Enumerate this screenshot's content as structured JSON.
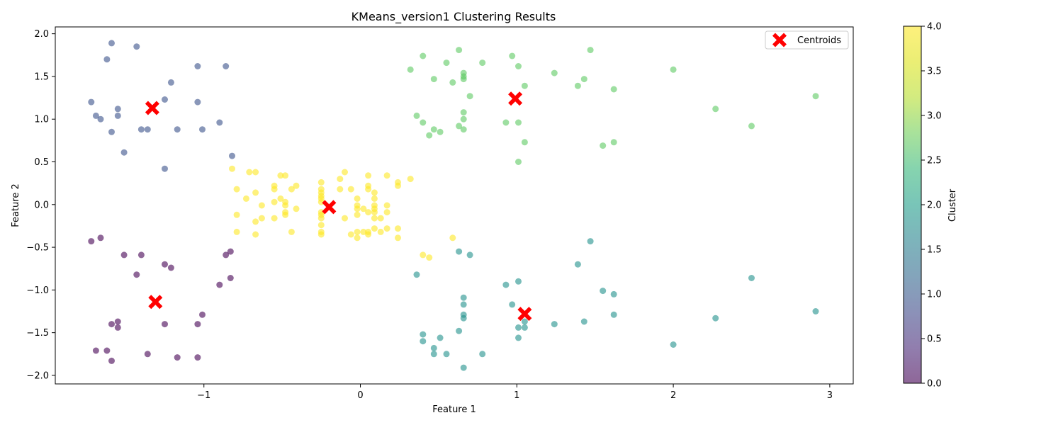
{
  "chart_data": {
    "type": "scatter",
    "title": "KMeans_version1 Clustering Results",
    "xlabel": "Feature 1",
    "ylabel": "Feature 2",
    "xlim": [
      -1.95,
      3.15
    ],
    "ylim": [
      -2.1,
      2.08
    ],
    "xticks": [
      -1,
      0,
      1,
      2,
      3
    ],
    "yticks": [
      -2.0,
      -1.5,
      -1.0,
      -0.5,
      0.0,
      0.5,
      1.0,
      1.5,
      2.0
    ],
    "grid": false,
    "legend": {
      "position": "top-right",
      "entries": [
        "Centroids"
      ]
    },
    "colorbar": {
      "label": "Cluster",
      "range": [
        0.0,
        4.0
      ],
      "ticks": [
        0.0,
        0.5,
        1.0,
        1.5,
        2.0,
        2.5,
        3.0,
        3.5,
        4.0
      ],
      "colormap": "viridis"
    },
    "point_alpha": 0.6,
    "series": [
      {
        "cluster": 0,
        "color": "#440154",
        "points": [
          [
            -1.72,
            -0.43
          ],
          [
            -1.66,
            -0.39
          ],
          [
            -1.51,
            -0.59
          ],
          [
            -1.4,
            -0.59
          ],
          [
            -1.43,
            -0.82
          ],
          [
            -1.25,
            -0.7
          ],
          [
            -1.21,
            -0.74
          ],
          [
            -0.86,
            -0.59
          ],
          [
            -0.83,
            -0.55
          ],
          [
            -0.83,
            -0.86
          ],
          [
            -0.9,
            -0.94
          ],
          [
            -1.01,
            -1.29
          ],
          [
            -1.04,
            -1.4
          ],
          [
            -1.25,
            -1.4
          ],
          [
            -1.55,
            -1.37
          ],
          [
            -1.59,
            -1.4
          ],
          [
            -1.55,
            -1.44
          ],
          [
            -1.69,
            -1.71
          ],
          [
            -1.62,
            -1.71
          ],
          [
            -1.36,
            -1.75
          ],
          [
            -1.17,
            -1.79
          ],
          [
            -1.04,
            -1.79
          ],
          [
            -1.59,
            -1.83
          ]
        ]
      },
      {
        "cluster": 1,
        "color": "#3b528b",
        "points": [
          [
            -1.59,
            1.89
          ],
          [
            -1.43,
            1.85
          ],
          [
            -1.62,
            1.7
          ],
          [
            -1.04,
            1.62
          ],
          [
            -0.86,
            1.62
          ],
          [
            -1.21,
            1.43
          ],
          [
            -1.25,
            1.23
          ],
          [
            -1.72,
            1.2
          ],
          [
            -1.04,
            1.2
          ],
          [
            -1.55,
            1.12
          ],
          [
            -1.69,
            1.04
          ],
          [
            -1.55,
            1.04
          ],
          [
            -1.66,
            1.0
          ],
          [
            -0.9,
            0.96
          ],
          [
            -1.4,
            0.88
          ],
          [
            -1.36,
            0.88
          ],
          [
            -1.17,
            0.88
          ],
          [
            -1.01,
            0.88
          ],
          [
            -1.59,
            0.85
          ],
          [
            -1.51,
            0.61
          ],
          [
            -0.82,
            0.57
          ],
          [
            -1.25,
            0.42
          ]
        ]
      },
      {
        "cluster": 2,
        "color": "#21918c",
        "points": [
          [
            1.47,
            -0.43
          ],
          [
            0.63,
            -0.55
          ],
          [
            0.7,
            -0.59
          ],
          [
            1.39,
            -0.7
          ],
          [
            0.36,
            -0.82
          ],
          [
            2.5,
            -0.86
          ],
          [
            1.01,
            -0.9
          ],
          [
            0.93,
            -0.94
          ],
          [
            1.55,
            -1.01
          ],
          [
            1.62,
            -1.05
          ],
          [
            0.66,
            -1.09
          ],
          [
            0.97,
            -1.17
          ],
          [
            0.66,
            -1.17
          ],
          [
            2.91,
            -1.25
          ],
          [
            0.66,
            -1.29
          ],
          [
            1.62,
            -1.29
          ],
          [
            2.27,
            -1.33
          ],
          [
            0.66,
            -1.33
          ],
          [
            1.43,
            -1.37
          ],
          [
            1.05,
            -1.37
          ],
          [
            1.24,
            -1.4
          ],
          [
            1.01,
            -1.44
          ],
          [
            1.05,
            -1.44
          ],
          [
            0.63,
            -1.48
          ],
          [
            0.4,
            -1.52
          ],
          [
            0.51,
            -1.56
          ],
          [
            1.01,
            -1.56
          ],
          [
            0.4,
            -1.6
          ],
          [
            2.0,
            -1.64
          ],
          [
            0.47,
            -1.68
          ],
          [
            0.47,
            -1.75
          ],
          [
            0.55,
            -1.75
          ],
          [
            0.78,
            -1.75
          ],
          [
            0.66,
            -1.91
          ]
        ]
      },
      {
        "cluster": 3,
        "color": "#5ec962",
        "points": [
          [
            0.63,
            1.81
          ],
          [
            1.47,
            1.81
          ],
          [
            0.4,
            1.74
          ],
          [
            0.97,
            1.74
          ],
          [
            0.55,
            1.66
          ],
          [
            0.78,
            1.66
          ],
          [
            1.01,
            1.62
          ],
          [
            0.32,
            1.58
          ],
          [
            2.0,
            1.58
          ],
          [
            0.66,
            1.54
          ],
          [
            1.24,
            1.54
          ],
          [
            0.66,
            1.5
          ],
          [
            0.47,
            1.47
          ],
          [
            0.66,
            1.47
          ],
          [
            1.43,
            1.47
          ],
          [
            0.59,
            1.43
          ],
          [
            1.05,
            1.39
          ],
          [
            1.39,
            1.39
          ],
          [
            1.62,
            1.35
          ],
          [
            0.7,
            1.27
          ],
          [
            2.91,
            1.27
          ],
          [
            2.27,
            1.12
          ],
          [
            0.66,
            1.08
          ],
          [
            0.36,
            1.04
          ],
          [
            0.66,
            1.0
          ],
          [
            0.4,
            0.96
          ],
          [
            0.93,
            0.96
          ],
          [
            1.01,
            0.96
          ],
          [
            0.63,
            0.92
          ],
          [
            2.5,
            0.92
          ],
          [
            0.47,
            0.88
          ],
          [
            0.66,
            0.88
          ],
          [
            0.51,
            0.85
          ],
          [
            0.44,
            0.81
          ],
          [
            1.05,
            0.73
          ],
          [
            1.62,
            0.73
          ],
          [
            1.55,
            0.69
          ],
          [
            1.01,
            0.5
          ]
        ]
      },
      {
        "cluster": 4,
        "color": "#fde725",
        "points": [
          [
            -0.82,
            0.42
          ],
          [
            -0.71,
            0.38
          ],
          [
            -0.67,
            0.38
          ],
          [
            -0.1,
            0.38
          ],
          [
            -0.51,
            0.34
          ],
          [
            -0.48,
            0.34
          ],
          [
            0.05,
            0.34
          ],
          [
            0.17,
            0.34
          ],
          [
            -0.13,
            0.3
          ],
          [
            0.32,
            0.3
          ],
          [
            -0.25,
            0.26
          ],
          [
            0.24,
            0.26
          ],
          [
            -0.55,
            0.22
          ],
          [
            -0.41,
            0.22
          ],
          [
            0.05,
            0.22
          ],
          [
            0.24,
            0.22
          ],
          [
            -0.79,
            0.18
          ],
          [
            -0.55,
            0.18
          ],
          [
            -0.44,
            0.18
          ],
          [
            -0.25,
            0.18
          ],
          [
            -0.13,
            0.18
          ],
          [
            -0.06,
            0.18
          ],
          [
            0.05,
            0.18
          ],
          [
            -0.67,
            0.14
          ],
          [
            -0.25,
            0.14
          ],
          [
            0.09,
            0.14
          ],
          [
            -0.25,
            0.1
          ],
          [
            -0.73,
            0.07
          ],
          [
            -0.51,
            0.07
          ],
          [
            -0.25,
            0.07
          ],
          [
            -0.02,
            0.07
          ],
          [
            0.09,
            0.07
          ],
          [
            -0.55,
            0.03
          ],
          [
            -0.48,
            0.03
          ],
          [
            -0.25,
            0.03
          ],
          [
            -0.63,
            -0.01
          ],
          [
            -0.48,
            -0.01
          ],
          [
            -0.02,
            -0.01
          ],
          [
            0.09,
            -0.01
          ],
          [
            0.17,
            -0.01
          ],
          [
            -0.41,
            -0.05
          ],
          [
            -0.02,
            -0.05
          ],
          [
            0.02,
            -0.05
          ],
          [
            0.09,
            -0.05
          ],
          [
            -0.48,
            -0.09
          ],
          [
            -0.25,
            -0.09
          ],
          [
            0.05,
            -0.09
          ],
          [
            0.09,
            -0.09
          ],
          [
            0.17,
            -0.09
          ],
          [
            -0.79,
            -0.12
          ],
          [
            -0.48,
            -0.12
          ],
          [
            -0.25,
            -0.12
          ],
          [
            -0.02,
            -0.12
          ],
          [
            -0.63,
            -0.16
          ],
          [
            -0.55,
            -0.16
          ],
          [
            -0.25,
            -0.16
          ],
          [
            -0.1,
            -0.16
          ],
          [
            0.09,
            -0.16
          ],
          [
            0.13,
            -0.16
          ],
          [
            -0.67,
            -0.2
          ],
          [
            -0.25,
            -0.24
          ],
          [
            0.09,
            -0.28
          ],
          [
            0.17,
            -0.28
          ],
          [
            0.24,
            -0.28
          ],
          [
            -0.79,
            -0.32
          ],
          [
            -0.44,
            -0.32
          ],
          [
            -0.25,
            -0.32
          ],
          [
            -0.02,
            -0.32
          ],
          [
            0.02,
            -0.32
          ],
          [
            0.05,
            -0.32
          ],
          [
            0.13,
            -0.32
          ],
          [
            -0.67,
            -0.35
          ],
          [
            -0.25,
            -0.35
          ],
          [
            -0.06,
            -0.35
          ],
          [
            0.05,
            -0.35
          ],
          [
            -0.02,
            -0.39
          ],
          [
            0.24,
            -0.39
          ],
          [
            0.59,
            -0.39
          ],
          [
            0.4,
            -0.59
          ],
          [
            0.44,
            -0.62
          ]
        ]
      }
    ],
    "centroids": [
      {
        "label": "Centroids",
        "color": "#ff0000",
        "marker": "X",
        "points": [
          [
            -1.33,
            1.13
          ],
          [
            0.99,
            1.24
          ],
          [
            -0.2,
            -0.03
          ],
          [
            -1.31,
            -1.14
          ],
          [
            1.05,
            -1.28
          ]
        ]
      }
    ]
  }
}
